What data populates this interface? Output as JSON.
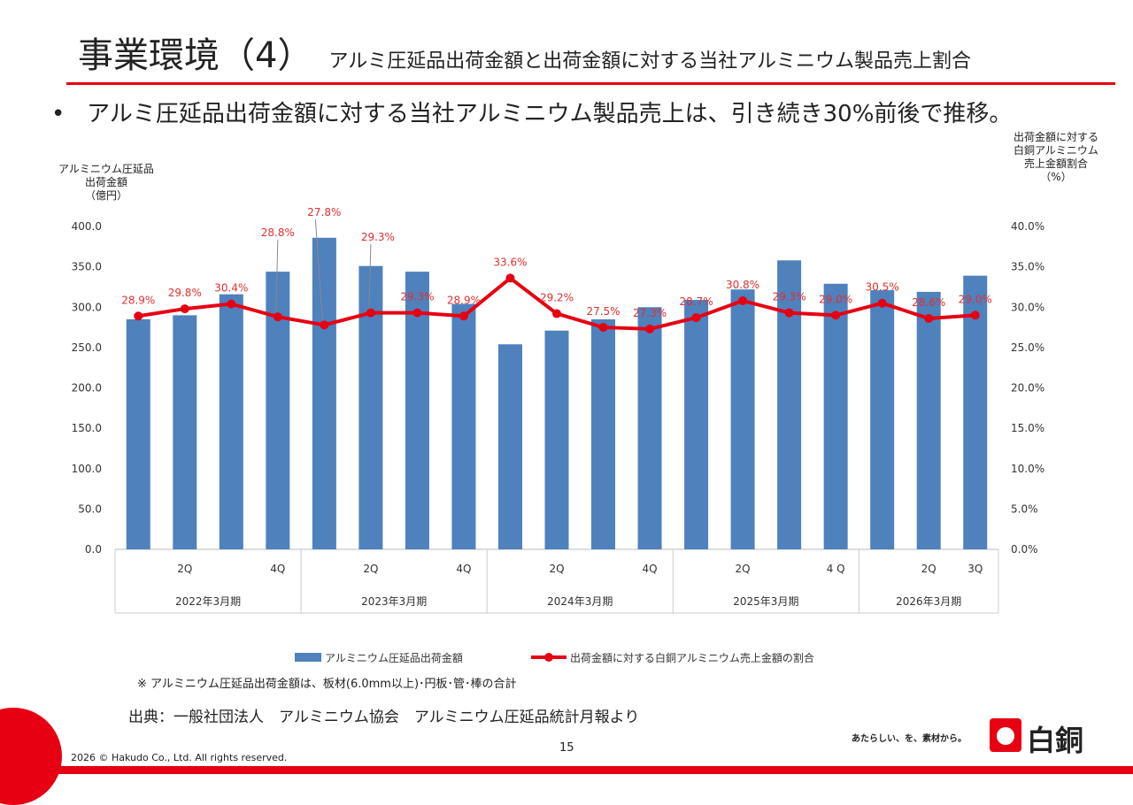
{
  "header": {
    "title": "事業環境（4）",
    "subtitle": "アルミ圧延品出荷金額と出荷金額に対する当社アルミニウム製品売上割合"
  },
  "bullet": "アルミ圧延品出荷金額に対する当社アルミニウム製品売上は、引き続き30%前後で推移。",
  "chart_data": {
    "type": "bar+line",
    "ylabel_left": "アルミニウム圧延品\n出荷金額\n（億円）",
    "ylabel_right": "出荷金額に対する\n白銅アルミニウム\n売上金額割合\n（%）",
    "ylim_left": [
      0,
      400
    ],
    "yticks_left": [
      "0.0",
      "50.0",
      "100.0",
      "150.0",
      "200.0",
      "250.0",
      "300.0",
      "350.0",
      "400.0"
    ],
    "ylim_right": [
      0,
      40
    ],
    "yticks_right": [
      "0.0%",
      "5.0%",
      "10.0%",
      "15.0%",
      "20.0%",
      "25.0%",
      "30.0%",
      "35.0%",
      "40.0%"
    ],
    "quarter_labels": [
      "",
      "2Q",
      "",
      "4Q",
      "",
      "2Q",
      "",
      "4Q",
      "",
      "2Q",
      "",
      "4Q",
      "",
      "2Q",
      "",
      "4 Q",
      "",
      "2Q",
      "3Q"
    ],
    "groups": [
      {
        "label": "2022年3月期",
        "count": 4
      },
      {
        "label": "2023年3月期",
        "count": 4
      },
      {
        "label": "2024年3月期",
        "count": 4
      },
      {
        "label": "2025年3月期",
        "count": 4
      },
      {
        "label": "2026年3月期",
        "count": 3
      }
    ],
    "series": [
      {
        "name": "アルミニウム圧延品出荷金額",
        "type": "bar",
        "color": "#4f81bd",
        "values": [
          285,
          290,
          316,
          344,
          386,
          351,
          344,
          304,
          254,
          271,
          285,
          300,
          309,
          322,
          358,
          329,
          321,
          319,
          339
        ]
      },
      {
        "name": "出荷金額に対する白銅アルミニウム売上金額の割合",
        "type": "line",
        "color": "#e60012",
        "values": [
          28.9,
          29.8,
          30.4,
          28.8,
          27.8,
          29.3,
          29.3,
          28.9,
          33.6,
          29.2,
          27.5,
          27.3,
          28.7,
          30.8,
          29.3,
          29.0,
          30.5,
          28.6,
          29.0
        ],
        "labels": [
          "28.9%",
          "29.8%",
          "30.4%",
          "28.8%",
          "27.8%",
          "29.3%",
          "29.3%",
          "28.9%",
          "33.6%",
          "29.2%",
          "27.5%",
          "27.3%",
          "28.7%",
          "30.8%",
          "29.3%",
          "29.0%",
          "30.5%",
          "28.6%",
          "29.0%"
        ]
      }
    ],
    "legend": "bottom"
  },
  "footer": {
    "note": "※ アルミニウム圧延品出荷金額は、板材(6.0mm以上)･円板･管･棒の合計",
    "source": "出典：一般社団法人　アルミニウム協会　アルミニウム圧延品統計月報より",
    "page": "15",
    "copyright": "2026 © Hakudo Co., Ltd. All rights reserved.",
    "tagline": "あたらしい、を、素材から。",
    "brand": "白銅"
  }
}
